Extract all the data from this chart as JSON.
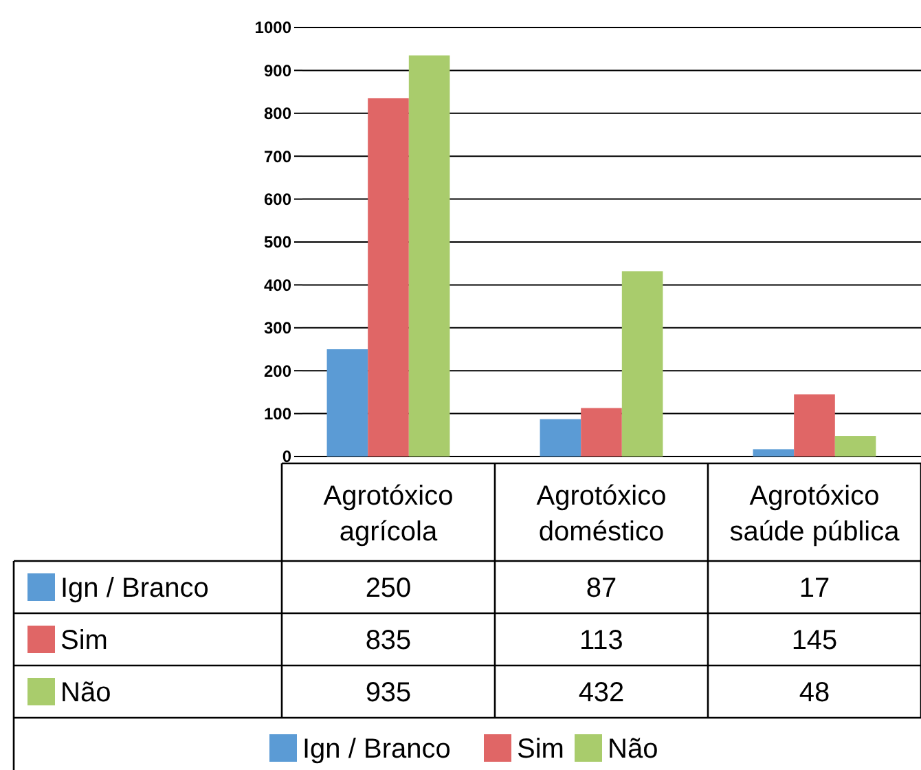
{
  "chart_data": {
    "type": "bar",
    "categories": [
      "Agrotóxico agrícola",
      "Agrotóxico doméstico",
      "Agrotóxico saúde pública"
    ],
    "series": [
      {
        "name": "Ign / Branco",
        "color": "#5b9bd5",
        "values": [
          250,
          87,
          17
        ]
      },
      {
        "name": "Sim",
        "color": "#e06666",
        "values": [
          835,
          113,
          145
        ]
      },
      {
        "name": "Não",
        "color": "#a9cc6c",
        "values": [
          935,
          432,
          48
        ]
      }
    ],
    "ylim": [
      0,
      1000
    ],
    "yticks": [
      0,
      100,
      200,
      300,
      400,
      500,
      600,
      700,
      800,
      900,
      1000
    ],
    "grid": "y",
    "legend": "bottom",
    "data_labels": true
  }
}
